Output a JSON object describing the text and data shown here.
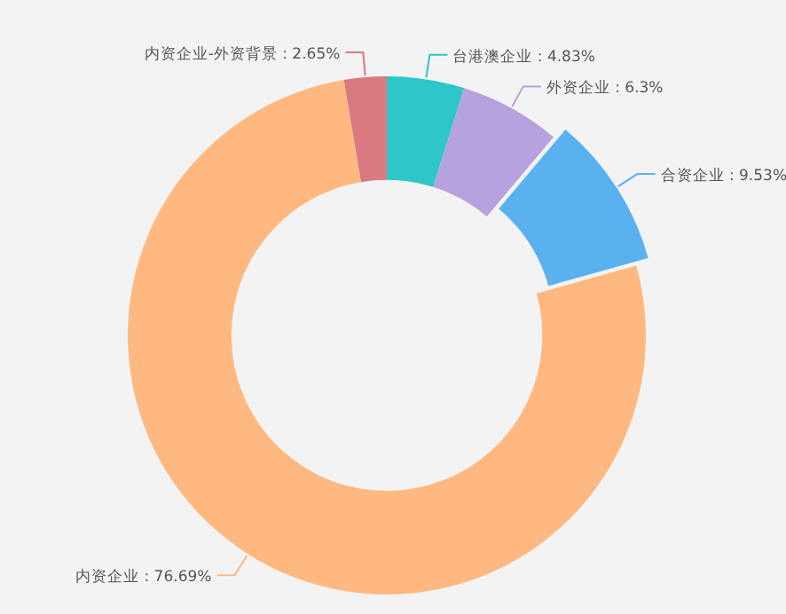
{
  "chart_data": {
    "type": "donut",
    "categories": [
      "台港澳企业",
      "外资企业",
      "合资企业",
      "内资企业",
      "内资企业-外资背景"
    ],
    "values": [
      4.83,
      6.3,
      9.53,
      76.69,
      2.65
    ],
    "colors": [
      "#2ec7c9",
      "#b6a2de",
      "#5ab1ef",
      "#ffb980",
      "#d87a80"
    ],
    "value_labels": [
      "4.83%",
      "6.3%",
      "9.53%",
      "76.69%",
      "2.65%"
    ],
    "legend": false
  }
}
